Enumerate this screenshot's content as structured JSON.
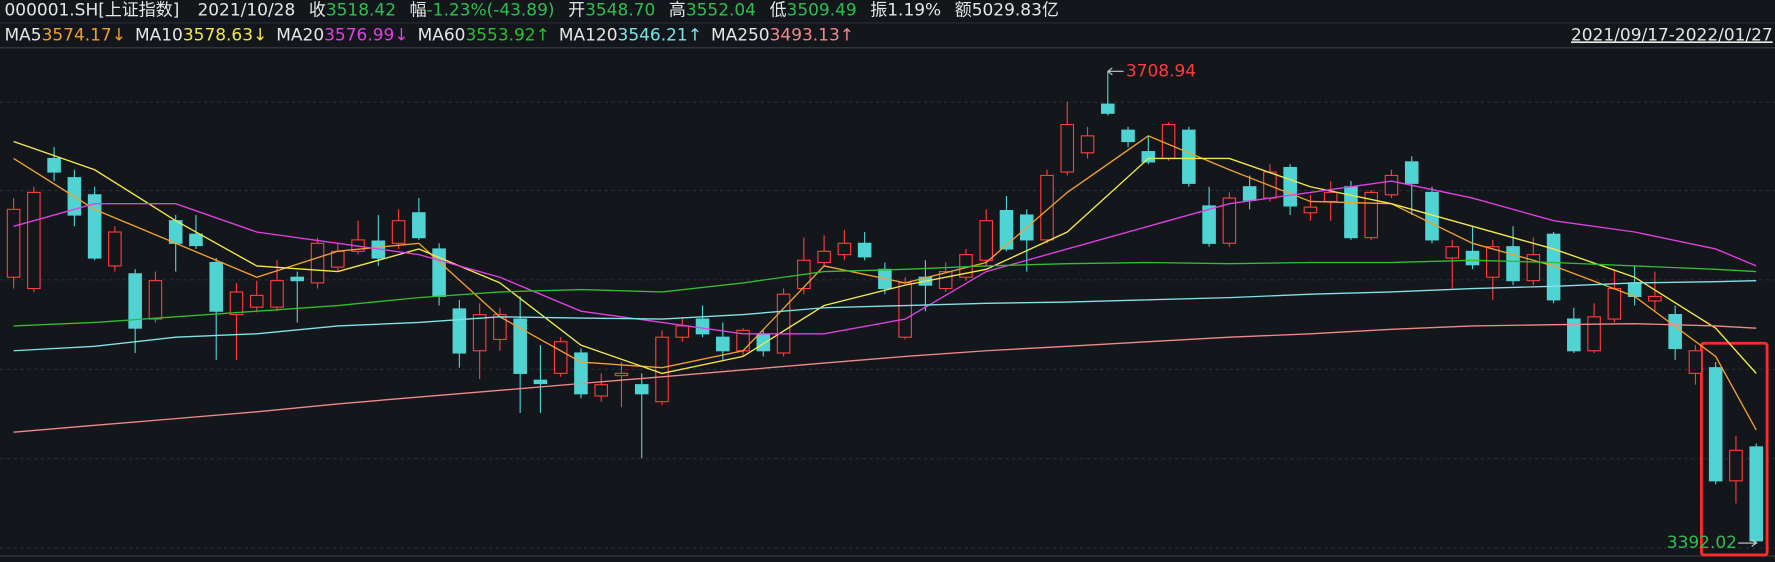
{
  "header": {
    "code": "000001.SH[上证指数]",
    "date": "2021/10/28",
    "items": [
      {
        "label": "收",
        "value": "3518.42",
        "color": "#2fbf4f"
      },
      {
        "label": "幅",
        "value": "-1.23%(-43.89)",
        "color": "#2fbf4f"
      },
      {
        "label": "开",
        "value": "3548.70",
        "color": "#2fbf4f"
      },
      {
        "label": "高",
        "value": "3552.04",
        "color": "#2fbf4f"
      },
      {
        "label": "低",
        "value": "3509.49",
        "color": "#2fbf4f"
      },
      {
        "label": "振",
        "value": "1.19%",
        "color": "#e6e6e6"
      },
      {
        "label": "额",
        "value": "5029.83亿",
        "color": "#e6e6e6"
      }
    ],
    "range": "2021/09/17-2022/01/27"
  },
  "chart_data": {
    "type": "candlestick",
    "up_color": "#ff3b3b",
    "down_color": "#4fd3d3",
    "max_label_color": "#ff3b3b",
    "min_label_color": "#2fbf4f",
    "ylim": [
      3384,
      3724
    ],
    "open": [
      3570.6,
      3563,
      3650.4,
      3637.5,
      3626,
      3578.2,
      3572.9,
      3542.5,
      3608.6,
      3599.5,
      3580.5,
      3545.5,
      3550.5,
      3550.5,
      3570.6,
      3566.8,
      3577.4,
      3588,
      3594.9,
      3593.4,
      3613.9,
      3589.6,
      3549.3,
      3521.2,
      3528.8,
      3542.5,
      3501.4,
      3506,
      3519.7,
      3490.8,
      3504.5,
      3498.4,
      3487,
      3530.3,
      3542.5,
      3530.3,
      3521.2,
      3531.8,
      3519.7,
      3563,
      3580.5,
      3585.8,
      3593.4,
      3575.9,
      3530.3,
      3570.6,
      3563,
      3570.6,
      3582,
      3615.4,
      3612.4,
      3595.7,
      3641.3,
      3654.2,
      3686.9,
      3669.4,
      3655,
      3650.4,
      3669.4,
      3618.5,
      3593.4,
      3631.4,
      3623.8,
      3644.3,
      3613.9,
      3621.5,
      3631.4,
      3597.2,
      3626,
      3648.1,
      3627.6,
      3583.5,
      3588,
      3570.6,
      3591.1,
      3568.3,
      3599.5,
      3542.5,
      3521.2,
      3542.5,
      3566.8,
      3554.7,
      3545.5,
      3506,
      3509.8,
      3433.8,
      3456.6
    ],
    "high": [
      3623.8,
      3631.4,
      3658,
      3642.8,
      3631.4,
      3604.8,
      3576,
      3574.4,
      3612.4,
      3612.4,
      3583.5,
      3566.8,
      3568.3,
      3582,
      3574.4,
      3597.2,
      3593.4,
      3608.6,
      3612.4,
      3616.2,
      3623.8,
      3593.4,
      3555.4,
      3553.1,
      3550.1,
      3557.7,
      3525,
      3530.3,
      3522.7,
      3506,
      3513.6,
      3506,
      3534.9,
      3544,
      3551.6,
      3540.2,
      3536.4,
      3534.9,
      3563,
      3597.2,
      3598.7,
      3602.5,
      3601,
      3580.5,
      3570.6,
      3582,
      3580.5,
      3589.6,
      3616.2,
      3625.3,
      3616.2,
      3642.8,
      3688.4,
      3671.7,
      3708.94,
      3671.7,
      3665.6,
      3674.7,
      3671.7,
      3631.4,
      3627.6,
      3639,
      3646.6,
      3646.6,
      3626,
      3635.2,
      3635.2,
      3629.1,
      3642.8,
      3651.9,
      3631.4,
      3595.7,
      3604.8,
      3595.7,
      3604.8,
      3597.2,
      3601,
      3550.1,
      3553.1,
      3575.9,
      3578.2,
      3574.4,
      3551.6,
      3525,
      3513.6,
      3464,
      3458.9
    ],
    "low": [
      3563,
      3560.7,
      3635.2,
      3604.8,
      3582,
      3574.4,
      3519.7,
      3540.2,
      3574.4,
      3589.6,
      3515.1,
      3515.1,
      3547,
      3547.8,
      3540.2,
      3563,
      3574.4,
      3585.8,
      3578.2,
      3589.6,
      3595.7,
      3551.6,
      3509.8,
      3502.2,
      3521.2,
      3479.4,
      3479.4,
      3503.7,
      3489.3,
      3487,
      3483.2,
      3449,
      3484.7,
      3527.3,
      3530.3,
      3515.1,
      3517.4,
      3517.4,
      3517.4,
      3559.2,
      3577.4,
      3582,
      3582,
      3559.2,
      3528.8,
      3547.8,
      3560.7,
      3568.3,
      3578.2,
      3588,
      3574.4,
      3593.4,
      3639,
      3650.4,
      3679.3,
      3658,
      3646.6,
      3648.9,
      3631.4,
      3591.1,
      3591.1,
      3616.2,
      3621.5,
      3612.4,
      3608.6,
      3608.6,
      3595.7,
      3595.7,
      3623.8,
      3612.4,
      3593.4,
      3563,
      3576,
      3555.4,
      3565.3,
      3565.3,
      3553.1,
      3519.7,
      3519.7,
      3540.2,
      3551.6,
      3547.8,
      3515.1,
      3498.4,
      3431.5,
      3418.6,
      3392.02
    ],
    "close": [
      3616.2,
      3627.6,
      3641.3,
      3612.4,
      3583.5,
      3601,
      3536.4,
      3568.3,
      3593.4,
      3591.9,
      3547.8,
      3560.7,
      3558.4,
      3568.3,
      3568.3,
      3593.4,
      3588,
      3595.7,
      3583.5,
      3608.6,
      3597.2,
      3557.7,
      3519.7,
      3545.5,
      3545.5,
      3506,
      3499.2,
      3527.3,
      3492.3,
      3498.4,
      3506,
      3492.3,
      3530.3,
      3537.9,
      3532.6,
      3521.2,
      3534.9,
      3521.2,
      3559.2,
      3582,
      3588,
      3593.4,
      3584.3,
      3563,
      3566.8,
      3565.3,
      3574.4,
      3585.8,
      3608.6,
      3589.6,
      3595.7,
      3639,
      3673.2,
      3665.6,
      3680.8,
      3661.8,
      3648.1,
      3673.2,
      3633.7,
      3593.4,
      3623.8,
      3622.3,
      3641.3,
      3618.5,
      3617.7,
      3627.6,
      3597.2,
      3627.6,
      3639,
      3633.7,
      3595.7,
      3591.1,
      3579,
      3591.1,
      3568.3,
      3585.8,
      3555.4,
      3521.2,
      3544,
      3563,
      3557.7,
      3557.7,
      3522.7,
      3521.2,
      3433.8,
      3454.3,
      3393.5
    ],
    "ma_x": [
      0,
      4,
      8,
      12,
      16,
      20,
      24,
      28,
      32,
      36,
      40,
      44,
      48,
      52,
      56,
      60,
      64,
      68,
      72,
      76,
      80,
      84,
      86
    ],
    "series": [
      {
        "name": "MA5",
        "legend_value": "3574.17↓",
        "color": "#f0a030",
        "values": [
          3650.4,
          3616.2,
          3593.4,
          3570.6,
          3588.1,
          3593.4,
          3544,
          3513.6,
          3509.8,
          3521.2,
          3578.2,
          3566.8,
          3580.5,
          3627.6,
          3665.6,
          3642.8,
          3621.5,
          3620,
          3593.4,
          3578.2,
          3557.7,
          3517.4,
          3468
        ]
      },
      {
        "name": "MA10",
        "legend_value": "3578.63↓",
        "color": "#f2e84a",
        "values": [
          3661.8,
          3642.8,
          3608.6,
          3578.2,
          3574.4,
          3589.6,
          3566.8,
          3525,
          3506,
          3517.4,
          3551.6,
          3565.3,
          3575.9,
          3601,
          3650.4,
          3650.4,
          3631.4,
          3620,
          3604.8,
          3589.6,
          3570.6,
          3536.4,
          3506
        ]
      },
      {
        "name": "MA20",
        "legend_value": "3576.99↓",
        "color": "#e040e0",
        "values": [
          3604.8,
          3620,
          3620,
          3601,
          3593.4,
          3585.8,
          3570.6,
          3547.8,
          3540.2,
          3532.6,
          3532.6,
          3542.5,
          3574.4,
          3589.6,
          3604.8,
          3620,
          3627.6,
          3635.2,
          3623.8,
          3608.6,
          3601,
          3589.6,
          3578.2
        ]
      },
      {
        "name": "MA60",
        "legend_value": "3553.92↑",
        "color": "#2fbf2f",
        "values": [
          3537.9,
          3540.2,
          3544,
          3547.8,
          3551.6,
          3556.9,
          3560.7,
          3562.3,
          3560.7,
          3566.8,
          3574.4,
          3575.9,
          3578.2,
          3579.7,
          3580.5,
          3579.7,
          3580.5,
          3580.5,
          3582,
          3580.5,
          3578.2,
          3575.9,
          3574.4
        ]
      },
      {
        "name": "MA120",
        "legend_value": "3546.21↑",
        "color": "#7fe3e8",
        "values": [
          3521.2,
          3524.2,
          3530.3,
          3532.6,
          3537.9,
          3540.2,
          3544,
          3543.2,
          3542.5,
          3545.5,
          3550.1,
          3551.6,
          3553.1,
          3553.9,
          3555.4,
          3556.9,
          3559.2,
          3560.7,
          3563,
          3564.5,
          3566.8,
          3567.6,
          3568.3
        ]
      },
      {
        "name": "MA250",
        "legend_value": "3493.13↑",
        "color": "#f08a8a",
        "values": [
          3466.5,
          3471.1,
          3475.6,
          3480.2,
          3485.5,
          3490.1,
          3494.6,
          3499.2,
          3503.7,
          3508.3,
          3512.9,
          3517.4,
          3521.2,
          3524.2,
          3527.3,
          3530.3,
          3532.6,
          3535.6,
          3537.9,
          3538.7,
          3539.4,
          3537.9,
          3536.4
        ]
      }
    ]
  }
}
